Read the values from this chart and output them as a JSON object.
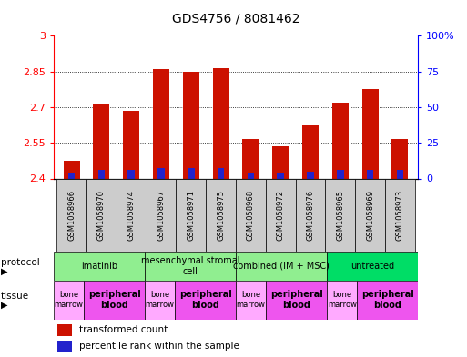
{
  "title": "GDS4756 / 8081462",
  "samples": [
    "GSM1058966",
    "GSM1058970",
    "GSM1058974",
    "GSM1058967",
    "GSM1058971",
    "GSM1058975",
    "GSM1058968",
    "GSM1058972",
    "GSM1058976",
    "GSM1058965",
    "GSM1058969",
    "GSM1058973"
  ],
  "red_values": [
    2.475,
    2.715,
    2.685,
    2.86,
    2.85,
    2.865,
    2.565,
    2.535,
    2.625,
    2.72,
    2.775,
    2.565
  ],
  "blue_values": [
    2.425,
    2.435,
    2.435,
    2.445,
    2.445,
    2.445,
    2.425,
    2.425,
    2.43,
    2.435,
    2.435,
    2.435
  ],
  "ymin": 2.4,
  "ymax": 3.0,
  "yticks": [
    2.4,
    2.55,
    2.7,
    2.85,
    3.0
  ],
  "ytick_labels": [
    "2.4",
    "2.55",
    "2.7",
    "2.85",
    "3"
  ],
  "y2ticks": [
    0,
    25,
    50,
    75,
    100
  ],
  "y2tick_labels": [
    "0",
    "25",
    "50",
    "75",
    "100%"
  ],
  "protocols": [
    {
      "label": "imatinib",
      "start": 0,
      "end": 3,
      "color": "#90ee90"
    },
    {
      "label": "mesenchymal stromal\ncell",
      "start": 3,
      "end": 6,
      "color": "#90ee90"
    },
    {
      "label": "combined (IM + MSC)",
      "start": 6,
      "end": 9,
      "color": "#90ee90"
    },
    {
      "label": "untreated",
      "start": 9,
      "end": 12,
      "color": "#00dd66"
    }
  ],
  "tissues": [
    {
      "label": "bone\nmarrow",
      "start": 0,
      "end": 1,
      "color": "#ffaaff",
      "bold": false
    },
    {
      "label": "peripheral\nblood",
      "start": 1,
      "end": 3,
      "color": "#ee55ee",
      "bold": true
    },
    {
      "label": "bone\nmarrow",
      "start": 3,
      "end": 4,
      "color": "#ffaaff",
      "bold": false
    },
    {
      "label": "peripheral\nblood",
      "start": 4,
      "end": 6,
      "color": "#ee55ee",
      "bold": true
    },
    {
      "label": "bone\nmarrow",
      "start": 6,
      "end": 7,
      "color": "#ffaaff",
      "bold": false
    },
    {
      "label": "peripheral\nblood",
      "start": 7,
      "end": 9,
      "color": "#ee55ee",
      "bold": true
    },
    {
      "label": "bone\nmarrow",
      "start": 9,
      "end": 10,
      "color": "#ffaaff",
      "bold": false
    },
    {
      "label": "peripheral\nblood",
      "start": 10,
      "end": 12,
      "color": "#ee55ee",
      "bold": true
    }
  ],
  "bar_width": 0.55,
  "bar_color_red": "#cc1100",
  "bar_color_blue": "#2222cc",
  "label_fontsize": 6,
  "title_fontsize": 10
}
